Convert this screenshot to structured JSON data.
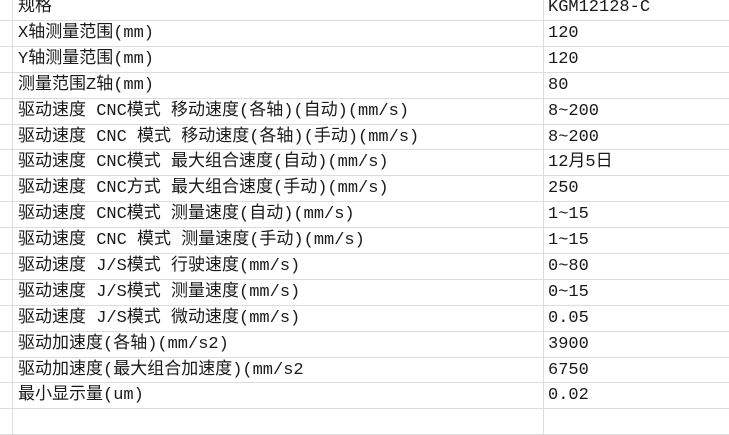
{
  "rows": [
    {
      "label": "规格",
      "value": "KGM12128-C"
    },
    {
      "label": "X轴测量范围(mm)",
      "value": "120"
    },
    {
      "label": "Y轴测量范围(mm)",
      "value": "120"
    },
    {
      "label": "测量范围Z轴(mm)",
      "value": "80"
    },
    {
      "label": "驱动速度 CNC模式 移动速度(各轴)(自动)(mm/s)",
      "value": "8~200"
    },
    {
      "label": "驱动速度 CNC 模式 移动速度(各轴)(手动)(mm/s)",
      "value": "8~200"
    },
    {
      "label": "驱动速度 CNC模式 最大组合速度(自动)(mm/s)",
      "value": "12月5日"
    },
    {
      "label": "驱动速度 CNC方式 最大组合速度(手动)(mm/s)",
      "value": "250"
    },
    {
      "label": "驱动速度 CNC模式 测量速度(自动)(mm/s)",
      "value": "1~15"
    },
    {
      "label": "驱动速度 CNC 模式 测量速度(手动)(mm/s)",
      "value": "1~15"
    },
    {
      "label": "驱动速度 J/S模式 行驶速度(mm/s)",
      "value": "0~80"
    },
    {
      "label": "驱动速度 J/S模式 测量速度(mm/s)",
      "value": "0~15"
    },
    {
      "label": "驱动速度 J/S模式 微动速度(mm/s)",
      "value": "0.05"
    },
    {
      "label": "驱动加速度(各轴)(mm/s2)",
      "value": "3900"
    },
    {
      "label": "驱动加速度(最大组合加速度)(mm/s2",
      "value": "6750"
    },
    {
      "label": "最小显示量(um)",
      "value": "0.02"
    },
    {
      "label": "",
      "value": ""
    }
  ]
}
